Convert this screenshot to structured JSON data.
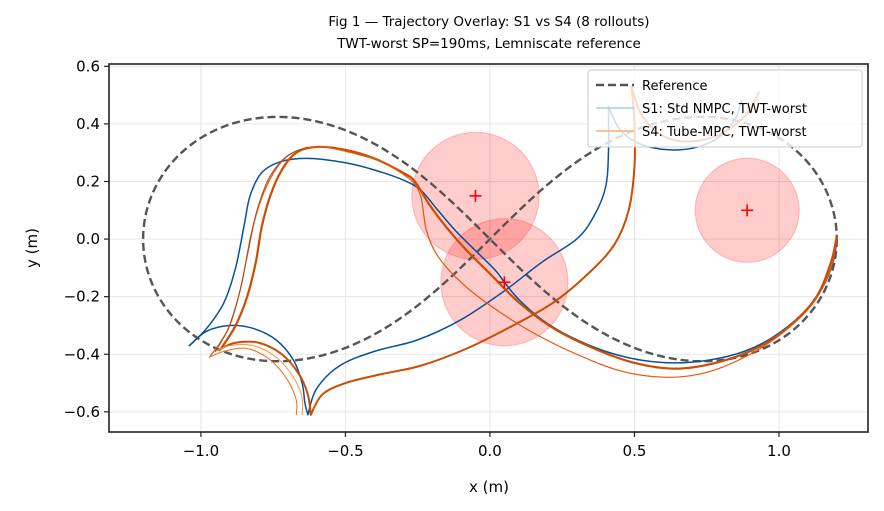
{
  "chart_data": {
    "type": "line",
    "title": "Fig 1 — Trajectory Overlay: S1 vs S4 (8 rollouts)",
    "subtitle": "TWT-worst SP=190ms, Lemniscate reference",
    "xlabel": "x (m)",
    "ylabel": "y (m)",
    "xlim": [
      -1.318,
      1.308
    ],
    "ylim": [
      -0.67,
      0.608
    ],
    "xticks": [
      -1.0,
      -0.5,
      0.0,
      0.5,
      1.0
    ],
    "xtick_labels": [
      "−1.0",
      "−0.5",
      "0.0",
      "0.5",
      "1.0"
    ],
    "yticks": [
      -0.6,
      -0.4,
      -0.2,
      0.0,
      0.2,
      0.4,
      0.6
    ],
    "ytick_labels": [
      "−0.6",
      "−0.4",
      "−0.2",
      "0.0",
      "0.2",
      "0.4",
      "0.6"
    ],
    "grid": true,
    "legend_position": "top-right",
    "legend": [
      {
        "label": "Reference",
        "style": "dashed",
        "color": "#555555"
      },
      {
        "label": "S1: Std NMPC, TWT-worst",
        "style": "solid",
        "color": "#a6cee3"
      },
      {
        "label": "S4: Tube-MPC, TWT-worst",
        "style": "solid",
        "color": "#fdae6b"
      }
    ],
    "reference": {
      "name": "Reference",
      "shape": "lemniscate of Bernoulli",
      "a": 1.2,
      "color": "#555555"
    },
    "obstacles": [
      {
        "name": "obstacle-1",
        "center": [
          -0.05,
          0.15
        ],
        "radius": 0.22,
        "fill": "#ff0000",
        "alpha": 0.2
      },
      {
        "name": "obstacle-2",
        "center": [
          0.05,
          -0.15
        ],
        "radius": 0.22,
        "fill": "#ff0000",
        "alpha": 0.2
      },
      {
        "name": "obstacle-3",
        "center": [
          0.89,
          0.1
        ],
        "radius": 0.18,
        "fill": "#ff0000",
        "alpha": 0.2
      }
    ],
    "series": [
      {
        "name": "S1: Std NMPC, TWT-worst",
        "color": "#08519c",
        "width": 1.5,
        "points": [
          [
            -1.04,
            -0.37
          ],
          [
            -0.98,
            -0.31
          ],
          [
            -0.92,
            -0.22
          ],
          [
            -0.88,
            -0.1
          ],
          [
            -0.85,
            0.05
          ],
          [
            -0.83,
            0.15
          ],
          [
            -0.79,
            0.23
          ],
          [
            -0.72,
            0.27
          ],
          [
            -0.62,
            0.28
          ],
          [
            -0.5,
            0.265
          ],
          [
            -0.4,
            0.24
          ],
          [
            -0.3,
            0.205
          ],
          [
            -0.24,
            0.17
          ],
          [
            -0.18,
            0.1
          ],
          [
            -0.12,
            0.03
          ],
          [
            -0.05,
            -0.04
          ],
          [
            0.02,
            -0.11
          ],
          [
            0.05,
            -0.15
          ],
          [
            0.1,
            -0.21
          ],
          [
            0.18,
            -0.28
          ],
          [
            0.28,
            -0.34
          ],
          [
            0.4,
            -0.39
          ],
          [
            0.52,
            -0.42
          ],
          [
            0.64,
            -0.43
          ],
          [
            0.76,
            -0.42
          ],
          [
            0.88,
            -0.39
          ],
          [
            0.98,
            -0.34
          ],
          [
            1.08,
            -0.26
          ],
          [
            1.15,
            -0.17
          ],
          [
            1.19,
            -0.07
          ],
          [
            1.2,
            0.01
          ]
        ]
      },
      {
        "name": "S1 return leg",
        "color": "#08519c",
        "width": 1.5,
        "points": [
          [
            -1.04,
            -0.37
          ],
          [
            -0.98,
            -0.32
          ],
          [
            -0.9,
            -0.3
          ],
          [
            -0.82,
            -0.31
          ],
          [
            -0.74,
            -0.35
          ],
          [
            -0.68,
            -0.42
          ],
          [
            -0.65,
            -0.5
          ],
          [
            -0.64,
            -0.57
          ],
          [
            -0.63,
            -0.61
          ]
        ]
      },
      {
        "name": "S1 lower-right leg",
        "color": "#08519c",
        "width": 1.5,
        "points": [
          [
            -0.63,
            -0.61
          ],
          [
            -0.6,
            -0.52
          ],
          [
            -0.52,
            -0.44
          ],
          [
            -0.4,
            -0.39
          ],
          [
            -0.25,
            -0.35
          ],
          [
            -0.1,
            -0.28
          ],
          [
            0.05,
            -0.18
          ],
          [
            0.18,
            -0.08
          ],
          [
            0.3,
            0.0
          ],
          [
            0.36,
            0.08
          ],
          [
            0.4,
            0.18
          ],
          [
            0.41,
            0.3
          ],
          [
            0.41,
            0.46
          ]
        ]
      },
      {
        "name": "S1 top arc",
        "color": "#08519c",
        "width": 1.5,
        "points": [
          [
            0.41,
            0.46
          ],
          [
            0.45,
            0.38
          ],
          [
            0.52,
            0.33
          ],
          [
            0.62,
            0.31
          ],
          [
            0.72,
            0.32
          ],
          [
            0.8,
            0.36
          ],
          [
            0.85,
            0.42
          ],
          [
            0.87,
            0.48
          ]
        ]
      },
      {
        "name": "S4: Tube-MPC, TWT-worst",
        "color": "#cc4c02",
        "width": 2.2,
        "points": [
          [
            -0.93,
            -0.38
          ],
          [
            -0.88,
            -0.3
          ],
          [
            -0.84,
            -0.2
          ],
          [
            -0.81,
            -0.08
          ],
          [
            -0.79,
            0.04
          ],
          [
            -0.76,
            0.15
          ],
          [
            -0.72,
            0.24
          ],
          [
            -0.67,
            0.3
          ],
          [
            -0.6,
            0.32
          ],
          [
            -0.5,
            0.31
          ],
          [
            -0.4,
            0.28
          ],
          [
            -0.3,
            0.23
          ],
          [
            -0.26,
            0.2
          ],
          [
            -0.21,
            0.12
          ],
          [
            -0.15,
            0.04
          ],
          [
            -0.08,
            -0.04
          ],
          [
            0.0,
            -0.12
          ],
          [
            0.1,
            -0.22
          ],
          [
            0.22,
            -0.31
          ],
          [
            0.36,
            -0.38
          ],
          [
            0.5,
            -0.43
          ],
          [
            0.64,
            -0.45
          ],
          [
            0.78,
            -0.43
          ],
          [
            0.92,
            -0.38
          ],
          [
            1.04,
            -0.3
          ],
          [
            1.13,
            -0.2
          ],
          [
            1.18,
            -0.08
          ],
          [
            1.2,
            0.01
          ]
        ]
      },
      {
        "name": "S4 return leg",
        "color": "#cc4c02",
        "width": 2.0,
        "points": [
          [
            -0.93,
            -0.38
          ],
          [
            -0.88,
            -0.36
          ],
          [
            -0.8,
            -0.36
          ],
          [
            -0.72,
            -0.4
          ],
          [
            -0.66,
            -0.47
          ],
          [
            -0.63,
            -0.54
          ],
          [
            -0.62,
            -0.61
          ]
        ]
      },
      {
        "name": "S4 lower-right leg",
        "color": "#cc4c02",
        "width": 2.0,
        "points": [
          [
            -0.62,
            -0.61
          ],
          [
            -0.58,
            -0.54
          ],
          [
            -0.5,
            -0.5
          ],
          [
            -0.38,
            -0.47
          ],
          [
            -0.24,
            -0.44
          ],
          [
            -0.08,
            -0.38
          ],
          [
            0.08,
            -0.3
          ],
          [
            0.22,
            -0.22
          ],
          [
            0.34,
            -0.12
          ],
          [
            0.43,
            -0.02
          ],
          [
            0.48,
            0.1
          ],
          [
            0.5,
            0.25
          ],
          [
            0.5,
            0.4
          ],
          [
            0.49,
            0.53
          ]
        ]
      },
      {
        "name": "S4 top arc",
        "color": "#cc4c02",
        "width": 2.0,
        "points": [
          [
            0.49,
            0.53
          ],
          [
            0.52,
            0.44
          ],
          [
            0.58,
            0.37
          ],
          [
            0.66,
            0.34
          ],
          [
            0.76,
            0.35
          ],
          [
            0.84,
            0.39
          ],
          [
            0.9,
            0.45
          ],
          [
            0.93,
            0.51
          ]
        ]
      },
      {
        "name": "S4 variant rollout",
        "color": "#e6550d",
        "width": 1.2,
        "points": [
          [
            -0.97,
            -0.41
          ],
          [
            -0.91,
            -0.32
          ],
          [
            -0.87,
            -0.2
          ],
          [
            -0.84,
            -0.06
          ],
          [
            -0.81,
            0.08
          ],
          [
            -0.77,
            0.19
          ],
          [
            -0.72,
            0.27
          ],
          [
            -0.66,
            0.31
          ],
          [
            -0.58,
            0.32
          ],
          [
            -0.48,
            0.3
          ],
          [
            -0.38,
            0.27
          ],
          [
            -0.28,
            0.21
          ],
          [
            -0.24,
            0.15
          ],
          [
            -0.22,
            0.03
          ],
          [
            -0.18,
            -0.06
          ],
          [
            -0.1,
            -0.15
          ],
          [
            0.0,
            -0.23
          ],
          [
            0.14,
            -0.32
          ],
          [
            0.3,
            -0.4
          ],
          [
            0.46,
            -0.46
          ],
          [
            0.62,
            -0.48
          ],
          [
            0.76,
            -0.46
          ],
          [
            0.9,
            -0.4
          ],
          [
            1.02,
            -0.32
          ],
          [
            1.12,
            -0.22
          ],
          [
            1.18,
            -0.1
          ],
          [
            1.2,
            0.0
          ]
        ]
      },
      {
        "name": "S4 variant return",
        "color": "#f16913",
        "width": 1.0,
        "points": [
          [
            -0.97,
            -0.41
          ],
          [
            -0.92,
            -0.39
          ],
          [
            -0.84,
            -0.38
          ],
          [
            -0.76,
            -0.42
          ],
          [
            -0.7,
            -0.49
          ],
          [
            -0.67,
            -0.56
          ],
          [
            -0.67,
            -0.61
          ]
        ]
      },
      {
        "name": "S4 variant return 2",
        "color": "#fd8d3c",
        "width": 1.0,
        "points": [
          [
            -0.95,
            -0.39
          ],
          [
            -0.9,
            -0.37
          ],
          [
            -0.82,
            -0.37
          ],
          [
            -0.74,
            -0.41
          ],
          [
            -0.68,
            -0.48
          ],
          [
            -0.65,
            -0.55
          ],
          [
            -0.65,
            -0.61
          ]
        ]
      },
      {
        "name": "S4 variant rise",
        "color": "#a6501a",
        "width": 1.0,
        "points": [
          [
            -0.95,
            -0.39
          ],
          [
            -0.9,
            -0.3
          ],
          [
            -0.86,
            -0.16
          ],
          [
            -0.83,
            0.0
          ],
          [
            -0.8,
            0.12
          ],
          [
            -0.76,
            0.22
          ],
          [
            -0.7,
            0.29
          ],
          [
            -0.63,
            0.32
          ]
        ]
      }
    ],
    "markers": [
      {
        "name": "obstacle-center-1",
        "x": -0.05,
        "y": 0.15,
        "symbol": "+",
        "color": "#ff0000"
      },
      {
        "name": "obstacle-center-2",
        "x": 0.05,
        "y": -0.15,
        "symbol": "+",
        "color": "#ff0000"
      },
      {
        "name": "obstacle-center-3",
        "x": 0.89,
        "y": 0.1,
        "symbol": "+",
        "color": "#ff0000"
      }
    ]
  }
}
